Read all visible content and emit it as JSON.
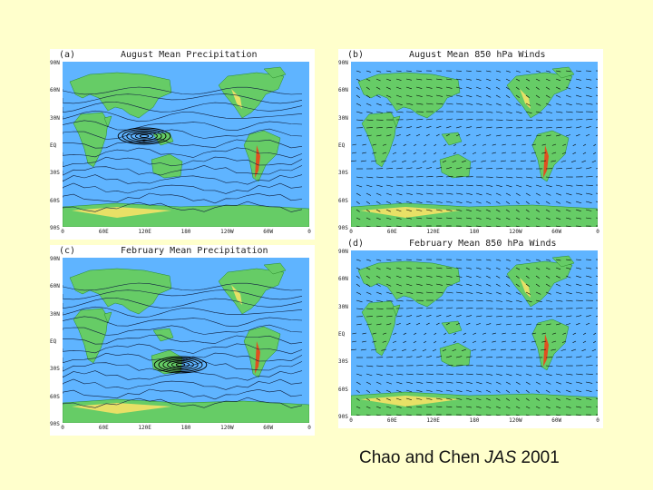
{
  "panels": [
    {
      "letter": "(a)",
      "title": "August Mean Precipitation",
      "kind": "precip",
      "ylabels": [
        "90N",
        "60N",
        "30N",
        "EQ",
        "30S",
        "60S",
        "90S"
      ],
      "xlabels": [
        "0",
        "60E",
        "120E",
        "180",
        "120W",
        "60W",
        "0"
      ]
    },
    {
      "letter": "(b)",
      "title": "August Mean 850 hPa Winds",
      "kind": "wind",
      "ylabels": [
        "90N",
        "60N",
        "30N",
        "EQ",
        "30S",
        "60S",
        "90S"
      ],
      "xlabels": [
        "0",
        "60E",
        "120E",
        "180",
        "120W",
        "60W",
        "0"
      ]
    },
    {
      "letter": "(c)",
      "title": "February Mean Precipitation",
      "kind": "precip",
      "ylabels": [
        "90N",
        "60N",
        "30N",
        "EQ",
        "30S",
        "60S",
        "90S"
      ],
      "xlabels": [
        "0",
        "60E",
        "120E",
        "180",
        "120W",
        "60W",
        "0"
      ]
    },
    {
      "letter": "(d)",
      "title": "February Mean 850 hPa Winds",
      "kind": "wind",
      "ylabels": [
        "90N",
        "60N",
        "30N",
        "EQ",
        "30S",
        "60S",
        "90S"
      ],
      "xlabels": [
        "0",
        "60E",
        "120E",
        "180",
        "120W",
        "60W",
        "0"
      ]
    }
  ],
  "caption": {
    "authors": "Chao and Chen",
    "journal": "JAS",
    "year": "2001"
  },
  "colors": {
    "ocean": "#5fb4ff",
    "land": "#66cc66",
    "highland": "#e8e066",
    "peak": "#e05020",
    "ice": "#d9f0a0",
    "background": "#ffffcc"
  }
}
